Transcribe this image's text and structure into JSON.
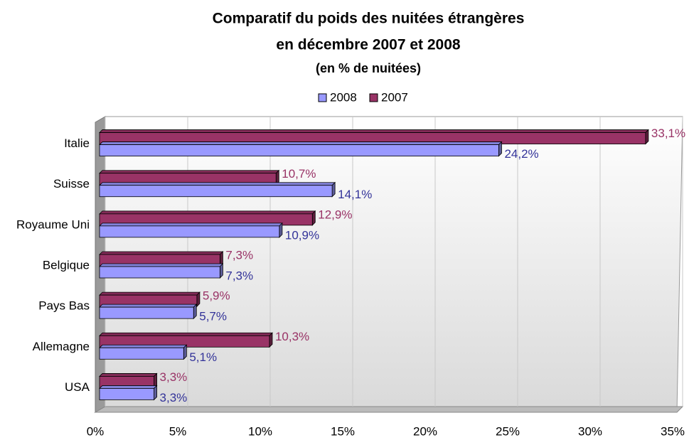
{
  "chart_data": {
    "type": "bar",
    "orientation": "horizontal",
    "title": [
      "Comparatif du poids des nuitées étrangères",
      "en décembre 2007 et 2008"
    ],
    "subtitle": "(en % de nuitées)",
    "categories": [
      "Italie",
      "Suisse",
      "Royaume Uni",
      "Belgique",
      "Pays Bas",
      "Allemagne",
      "USA"
    ],
    "series": [
      {
        "name": "2008",
        "color": "#9999ff",
        "label_color": "#333399",
        "values": [
          24.2,
          14.1,
          10.9,
          7.3,
          5.7,
          5.1,
          3.3
        ],
        "value_labels": [
          "24,2%",
          "14,1%",
          "10,9%",
          "7,3%",
          "5,7%",
          "5,1%",
          "3,3%"
        ]
      },
      {
        "name": "2007",
        "color": "#993366",
        "label_color": "#993366",
        "values": [
          33.1,
          10.7,
          12.9,
          7.3,
          5.9,
          10.3,
          3.3
        ],
        "value_labels": [
          "33,1%",
          "10,7%",
          "12,9%",
          "7,3%",
          "5,9%",
          "10,3%",
          "3,3%"
        ]
      }
    ],
    "xlim": [
      0,
      35
    ],
    "xticks": [
      {
        "value": 0,
        "label": "0%"
      },
      {
        "value": 5,
        "label": "5%"
      },
      {
        "value": 10,
        "label": "10%"
      },
      {
        "value": 15,
        "label": "15%"
      },
      {
        "value": 20,
        "label": "20%"
      },
      {
        "value": 25,
        "label": "25%"
      },
      {
        "value": 30,
        "label": "30%"
      },
      {
        "value": 35,
        "label": "35%"
      }
    ],
    "grid": true,
    "legend": "top"
  }
}
